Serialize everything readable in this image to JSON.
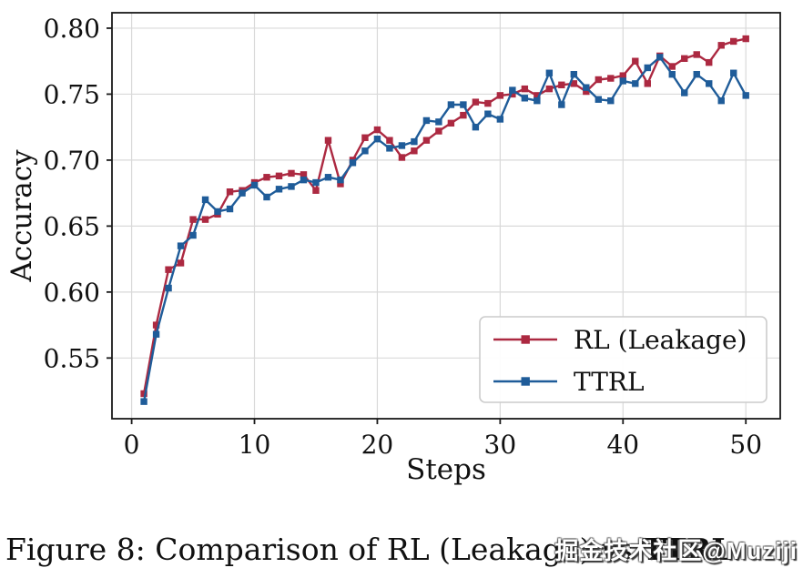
{
  "figure": {
    "caption": {
      "prefix": "Figure 8: Comparison of RL (Leakage) ",
      "vs": "vs",
      "space": " ",
      "subject": "TTRL",
      "period": "."
    },
    "watermark": "掘金技术社区@Muziji"
  },
  "chart_data": {
    "type": "line",
    "title": "",
    "xlabel": "Steps",
    "ylabel": "Accuracy",
    "xlim": [
      -1.6,
      52.8
    ],
    "ylim": [
      0.504,
      0.8117
    ],
    "xticks": [
      0,
      10,
      20,
      30,
      40,
      50
    ],
    "yticks": [
      0.55,
      0.6,
      0.65,
      0.7,
      0.75,
      0.8
    ],
    "grid": true,
    "grid_color": "#d9d9d9",
    "spine_color": "#1a1a1a",
    "legend_position": "lower right",
    "x": [
      1,
      2,
      3,
      4,
      5,
      6,
      7,
      8,
      9,
      10,
      11,
      12,
      13,
      14,
      15,
      16,
      17,
      18,
      19,
      20,
      21,
      22,
      23,
      24,
      25,
      26,
      27,
      28,
      29,
      30,
      31,
      32,
      33,
      34,
      35,
      36,
      37,
      38,
      39,
      40,
      41,
      42,
      43,
      44,
      45,
      46,
      47,
      48,
      49,
      50
    ],
    "series": [
      {
        "name": "RL (Leakage)",
        "color": "#ac2941",
        "marker": "square",
        "values": [
          0.523,
          0.575,
          0.617,
          0.622,
          0.655,
          0.655,
          0.659,
          0.676,
          0.677,
          0.683,
          0.687,
          0.688,
          0.69,
          0.689,
          0.677,
          0.715,
          0.682,
          0.7,
          0.717,
          0.723,
          0.715,
          0.702,
          0.707,
          0.715,
          0.722,
          0.728,
          0.734,
          0.744,
          0.743,
          0.749,
          0.75,
          0.754,
          0.749,
          0.754,
          0.757,
          0.758,
          0.752,
          0.761,
          0.762,
          0.764,
          0.775,
          0.758,
          0.779,
          0.771,
          0.777,
          0.78,
          0.774,
          0.787,
          0.79,
          0.792
        ]
      },
      {
        "name": "TTRL",
        "color": "#1f5c99",
        "marker": "square",
        "values": [
          0.517,
          0.568,
          0.603,
          0.635,
          0.643,
          0.67,
          0.661,
          0.663,
          0.675,
          0.681,
          0.672,
          0.678,
          0.68,
          0.685,
          0.683,
          0.687,
          0.685,
          0.698,
          0.707,
          0.716,
          0.709,
          0.711,
          0.714,
          0.73,
          0.729,
          0.742,
          0.742,
          0.725,
          0.735,
          0.731,
          0.753,
          0.747,
          0.745,
          0.766,
          0.742,
          0.765,
          0.755,
          0.746,
          0.745,
          0.76,
          0.758,
          0.77,
          0.778,
          0.765,
          0.751,
          0.765,
          0.758,
          0.745,
          0.766,
          0.749
        ]
      }
    ]
  }
}
